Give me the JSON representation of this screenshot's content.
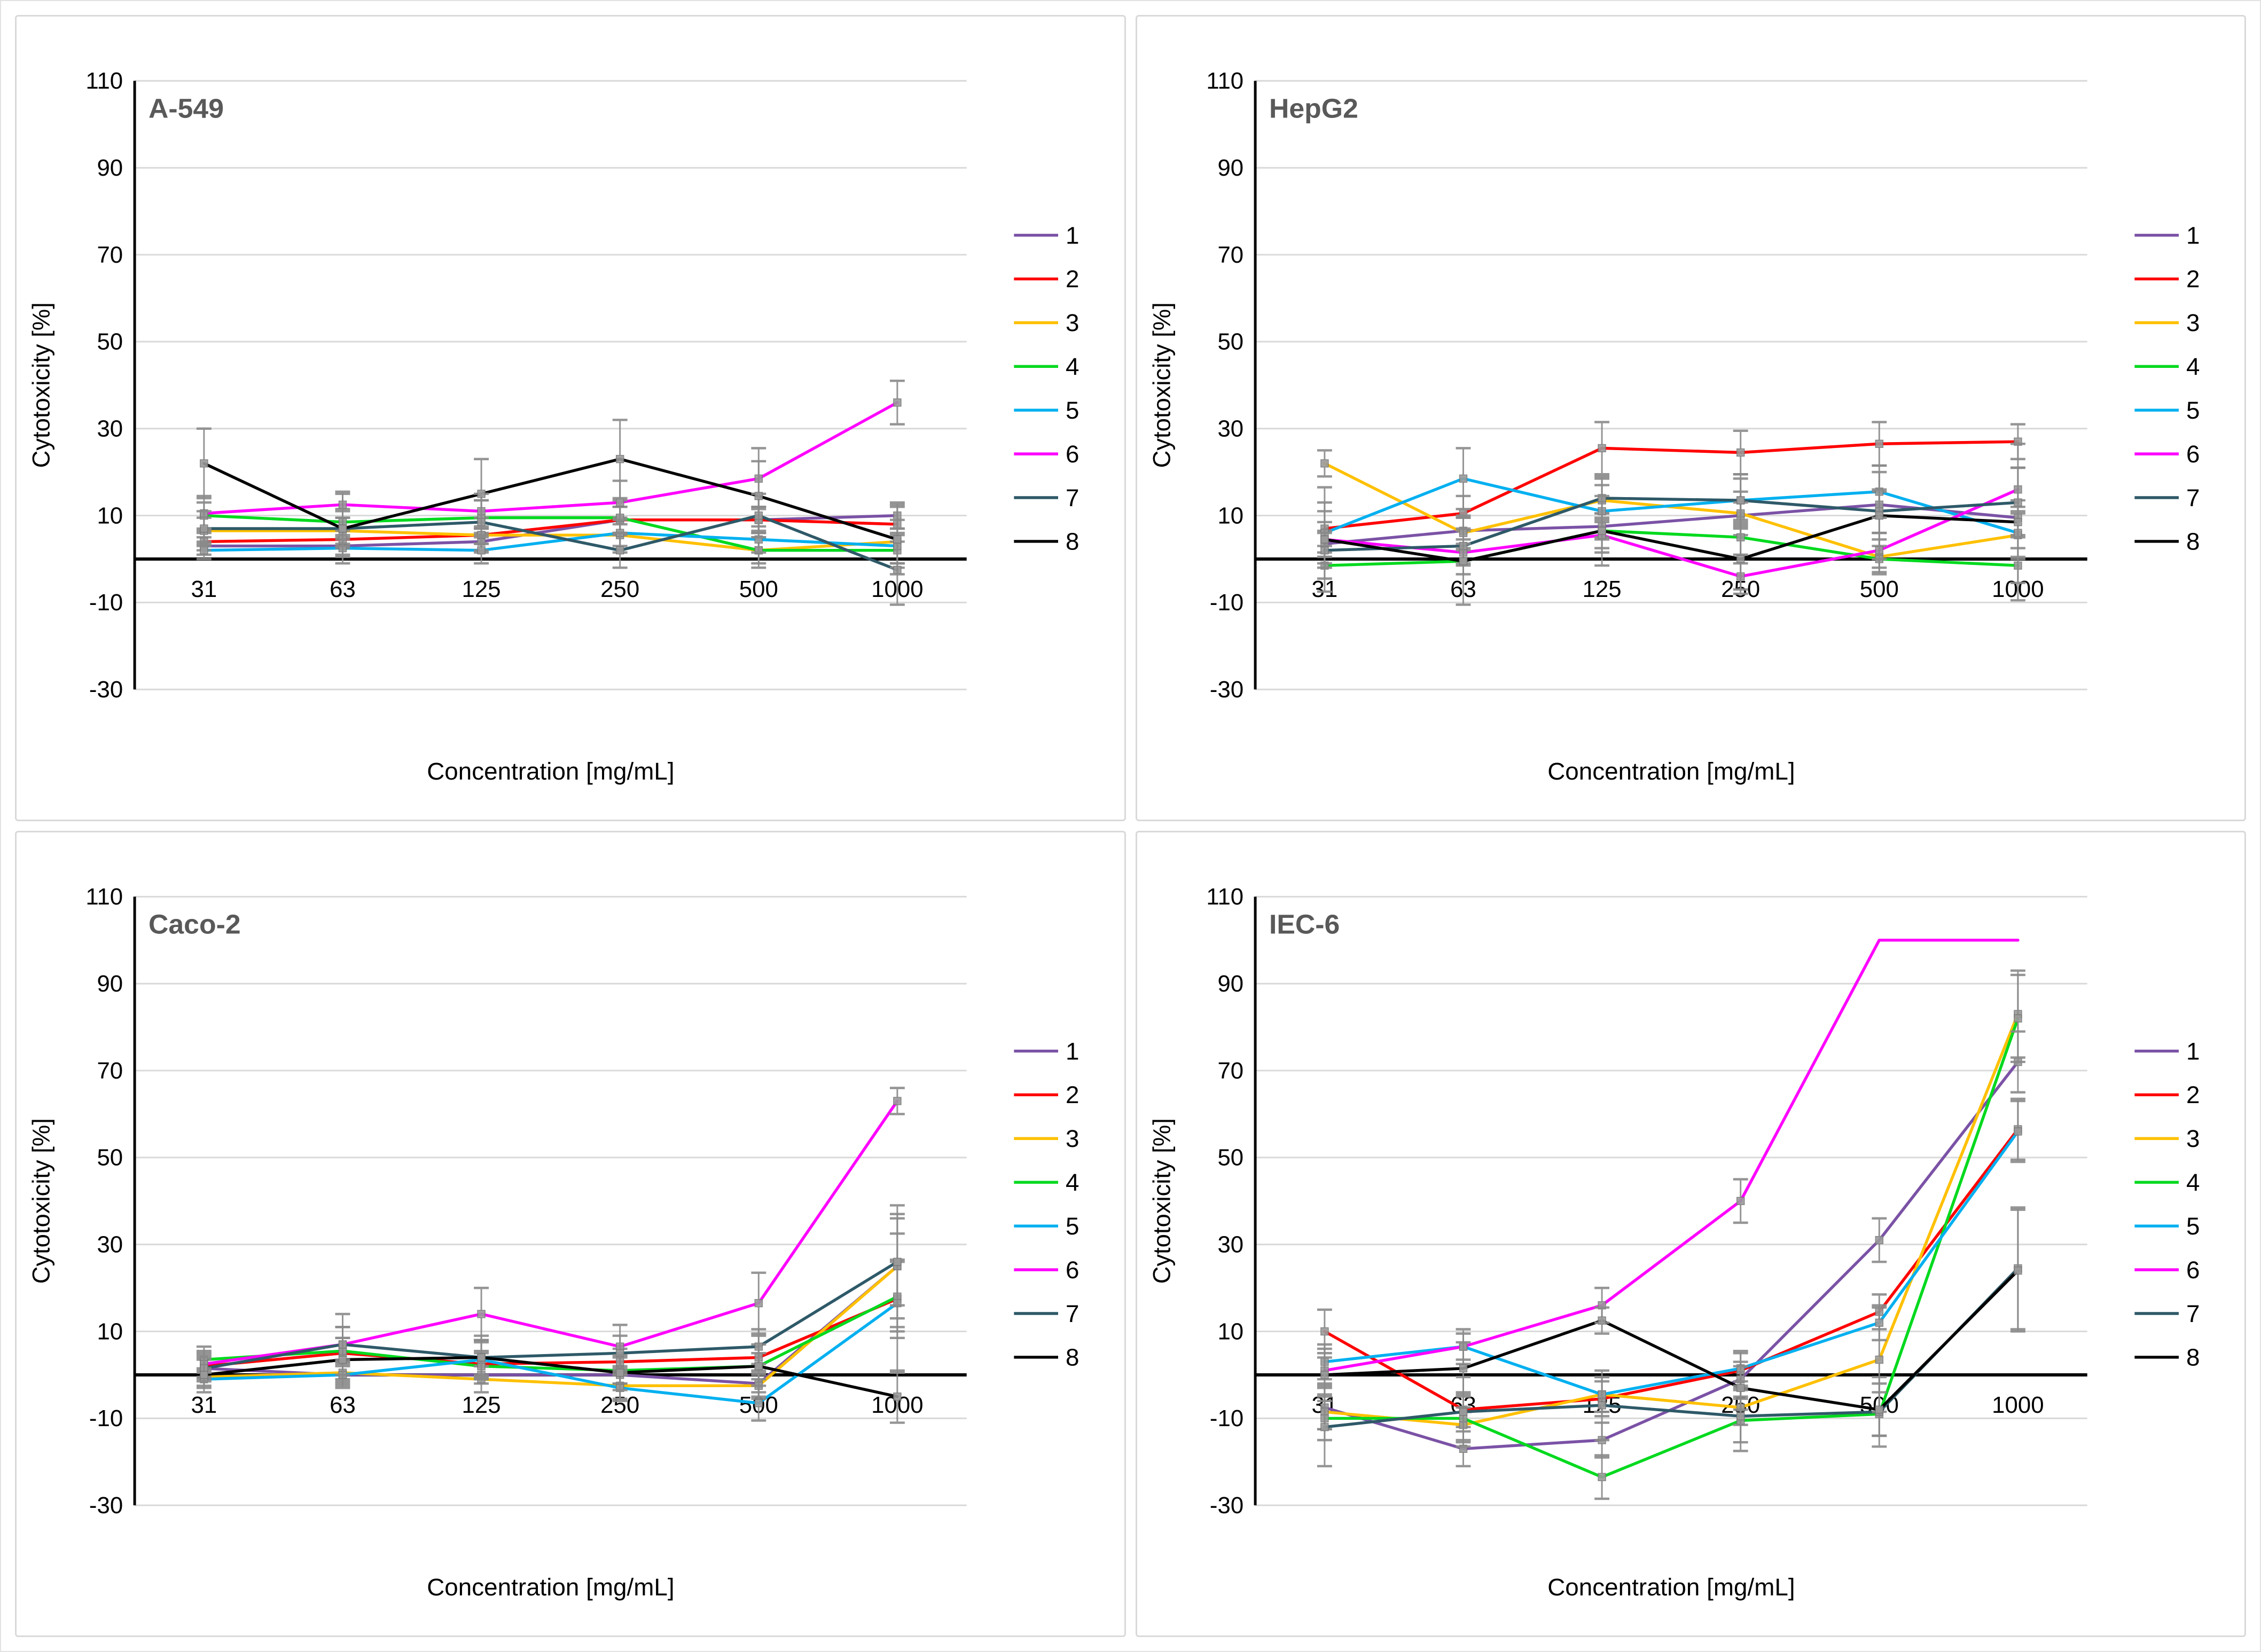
{
  "figure": {
    "x_axis_label": "Concentration [mg/mL]",
    "y_axis_label": "Cytotoxicity [%]",
    "x_categories": [
      "31",
      "63",
      "125",
      "250",
      "500",
      "1000"
    ],
    "y_ticks": [
      110,
      90,
      70,
      50,
      30,
      10,
      -10,
      -30
    ],
    "ylim": [
      -30,
      110
    ],
    "grid_on": true,
    "legend_position": "right",
    "legend_labels": [
      "1",
      "2",
      "3",
      "4",
      "5",
      "6",
      "7",
      "8"
    ],
    "series_colors": {
      "1": "#7B52A6",
      "2": "#FF0000",
      "3": "#FFC000",
      "4": "#00D91E",
      "5": "#00B0F0",
      "6": "#FF00FF",
      "7": "#2E5968",
      "8": "#000000"
    },
    "panel_title_color": "#595959",
    "grid_color": "#D9D9D9",
    "axis_color": "#000000",
    "error_bar_color": "#8A8A8A"
  },
  "chart_data": [
    {
      "type": "line",
      "title": "A-549",
      "xlabel": "Concentration [mg/mL]",
      "ylabel": "Cytotoxicity [%]",
      "categories": [
        "31",
        "63",
        "125",
        "250",
        "500",
        "1000"
      ],
      "ylim": [
        -30,
        110
      ],
      "series": [
        {
          "name": "1",
          "values": [
            3,
            3,
            4,
            9,
            9,
            10
          ],
          "err": [
            2,
            2,
            2,
            3,
            3,
            3
          ]
        },
        {
          "name": "2",
          "values": [
            4,
            4.5,
            5.5,
            9,
            9,
            8
          ],
          "err": [
            2,
            2,
            2,
            3,
            3,
            4
          ]
        },
        {
          "name": "3",
          "values": [
            6.5,
            6.5,
            5.5,
            5.5,
            2,
            4
          ],
          "err": [
            3,
            3,
            4,
            4,
            4,
            5
          ]
        },
        {
          "name": "4",
          "values": [
            10,
            8.5,
            9.5,
            9.5,
            2,
            2
          ],
          "err": [
            3,
            3,
            4,
            4,
            3,
            4
          ]
        },
        {
          "name": "5",
          "values": [
            2,
            2.5,
            2,
            6,
            4.5,
            3
          ],
          "err": [
            2,
            2,
            3,
            3,
            3,
            4
          ]
        },
        {
          "name": "6",
          "values": [
            10.5,
            12.5,
            11,
            13,
            18.5,
            36
          ],
          "err": [
            4,
            3,
            4,
            5,
            7,
            5
          ]
        },
        {
          "name": "7",
          "values": [
            7,
            7,
            8.5,
            2,
            10,
            -2.5
          ],
          "err": [
            4,
            4,
            5,
            4,
            5,
            8
          ]
        },
        {
          "name": "8",
          "values": [
            22,
            7,
            15,
            23,
            14.5,
            4.5
          ],
          "err": [
            8,
            8,
            8,
            9,
            8,
            8
          ]
        }
      ]
    },
    {
      "type": "line",
      "title": "HepG2",
      "xlabel": "Concentration [mg/mL]",
      "ylabel": "Cytotoxicity [%]",
      "categories": [
        "31",
        "63",
        "125",
        "250",
        "500",
        "1000"
      ],
      "ylim": [
        -30,
        110
      ],
      "series": [
        {
          "name": "1",
          "values": [
            3.5,
            6.5,
            7.5,
            10,
            12.5,
            9.5
          ],
          "err": [
            3,
            3,
            3,
            3,
            3,
            4
          ]
        },
        {
          "name": "2",
          "values": [
            7,
            10.5,
            25.5,
            24.5,
            26.5,
            27
          ],
          "err": [
            4,
            4,
            6,
            5,
            5,
            4
          ]
        },
        {
          "name": "3",
          "values": [
            22,
            6,
            13.5,
            10.5,
            0.5,
            5.5
          ],
          "err": [
            3,
            4,
            5,
            5,
            4,
            5
          ]
        },
        {
          "name": "4",
          "values": [
            -1.5,
            -0.5,
            6.5,
            5,
            0,
            -1.5
          ],
          "err": [
            3,
            3,
            4,
            4,
            3,
            4
          ]
        },
        {
          "name": "5",
          "values": [
            6,
            18.5,
            11,
            13.5,
            15.5,
            6
          ],
          "err": [
            7,
            7,
            6,
            6,
            6,
            6
          ]
        },
        {
          "name": "6",
          "values": [
            4.5,
            1.5,
            5.5,
            -4,
            2,
            16
          ],
          "err": [
            4,
            3,
            4,
            3,
            4,
            5
          ]
        },
        {
          "name": "7",
          "values": [
            2,
            3,
            14,
            13.5,
            11,
            13
          ],
          "err": [
            4,
            4,
            5,
            5,
            5,
            8
          ]
        },
        {
          "name": "8",
          "values": [
            4.5,
            -0.5,
            6.5,
            0,
            10,
            8.5
          ],
          "err": [
            12,
            10,
            8,
            8,
            10,
            18
          ]
        }
      ]
    },
    {
      "type": "line",
      "title": "Caco-2",
      "xlabel": "Concentration [mg/mL]",
      "ylabel": "Cytotoxicity [%]",
      "categories": [
        "31",
        "63",
        "125",
        "250",
        "500",
        "1000"
      ],
      "ylim": [
        -30,
        110
      ],
      "series": [
        {
          "name": "1",
          "values": [
            1.5,
            0,
            0,
            0,
            -2,
            25
          ],
          "err": [
            2,
            2,
            2,
            2,
            2,
            12
          ]
        },
        {
          "name": "2",
          "values": [
            2,
            5,
            2.5,
            3,
            4,
            17.5
          ],
          "err": [
            3,
            6,
            3,
            3,
            3,
            9
          ]
        },
        {
          "name": "3",
          "values": [
            -0.5,
            0.5,
            -1,
            -2.5,
            -2.5,
            25
          ],
          "err": [
            2,
            3,
            3,
            3,
            3,
            14
          ]
        },
        {
          "name": "4",
          "values": [
            3.5,
            5.5,
            2,
            1,
            2,
            18
          ],
          "err": [
            3,
            3,
            3,
            3,
            3,
            8
          ]
        },
        {
          "name": "5",
          "values": [
            -1,
            0,
            3.5,
            -3,
            -6.5,
            16.5
          ],
          "err": [
            2,
            3,
            4,
            3,
            4,
            16
          ]
        },
        {
          "name": "6",
          "values": [
            2.5,
            7,
            14,
            6.5,
            16.5,
            63
          ],
          "err": [
            3,
            7,
            6,
            5,
            7,
            3
          ]
        },
        {
          "name": "7",
          "values": [
            1.5,
            7,
            4,
            5,
            6.5,
            26
          ],
          "err": [
            3,
            4,
            4,
            4,
            4,
            10
          ]
        },
        {
          "name": "8",
          "values": [
            0,
            3.5,
            4,
            0.5,
            2,
            -5
          ],
          "err": [
            4,
            5,
            5,
            4,
            7,
            6
          ]
        }
      ]
    },
    {
      "type": "line",
      "title": "IEC-6",
      "xlabel": "Concentration [mg/mL]",
      "ylabel": "Cytotoxicity [%]",
      "categories": [
        "31",
        "63",
        "125",
        "250",
        "500",
        "1000"
      ],
      "ylim": [
        -30,
        110
      ],
      "series": [
        {
          "name": "1",
          "values": [
            -7.5,
            -17,
            -15,
            -1,
            31,
            72
          ],
          "err": [
            5,
            4,
            4,
            4,
            5,
            7
          ]
        },
        {
          "name": "2",
          "values": [
            10,
            -8,
            -5.5,
            1,
            14.5,
            56.5
          ],
          "err": [
            5,
            4,
            4,
            4,
            4,
            7
          ]
        },
        {
          "name": "3",
          "values": [
            -8.5,
            -11.5,
            -4.5,
            -7.5,
            3.5,
            83
          ],
          "err": [
            4,
            4,
            4,
            4,
            12,
            10
          ]
        },
        {
          "name": "4",
          "values": [
            -10,
            -10,
            -23.5,
            -10.5,
            -9,
            82
          ],
          "err": [
            5,
            5,
            5,
            5,
            5,
            10
          ]
        },
        {
          "name": "5",
          "values": [
            3,
            6.5,
            -4.5,
            1.5,
            12,
            56
          ],
          "err": [
            4,
            4,
            4,
            4,
            4,
            7
          ]
        },
        {
          "name": "6",
          "values": [
            1,
            6.5,
            16,
            40,
            100,
            100
          ],
          "err": [
            3,
            3,
            4,
            5,
            0,
            0
          ]
        },
        {
          "name": "7",
          "values": [
            -12,
            -8.5,
            -7,
            -9.5,
            -8.5,
            24.5
          ],
          "err": [
            9,
            8,
            8,
            8,
            8,
            14
          ]
        },
        {
          "name": "8",
          "values": [
            0,
            1.5,
            12.5,
            -3,
            -8,
            24
          ],
          "err": [
            6,
            6,
            3,
            5,
            6,
            14
          ]
        }
      ]
    }
  ]
}
